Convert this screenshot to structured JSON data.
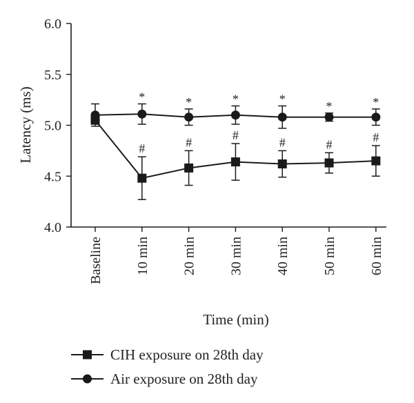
{
  "chart_data": {
    "type": "line",
    "title": "",
    "xlabel": "Time (min)",
    "ylabel": "Latency (ms)",
    "categories": [
      "Baseline",
      "10 min",
      "20 min",
      "30 min",
      "40 min",
      "50 min",
      "60 min"
    ],
    "ylim": [
      4.0,
      6.0
    ],
    "yticks": [
      "4.0",
      "4.5",
      "5.0",
      "5.5",
      "6.0"
    ],
    "grid": false,
    "legend_position": "bottom-left",
    "series": [
      {
        "name": "CIH exposure on 28th day",
        "marker": "square",
        "color": "#1a1a1a",
        "values": [
          5.05,
          4.48,
          4.58,
          4.64,
          4.62,
          4.63,
          4.65
        ],
        "errors": [
          0.04,
          0.21,
          0.17,
          0.18,
          0.13,
          0.1,
          0.15
        ],
        "annotations": [
          "",
          "#",
          "#",
          "#",
          "#",
          "#",
          "#"
        ]
      },
      {
        "name": "Air exposure on 28th day",
        "marker": "circle",
        "color": "#1a1a1a",
        "values": [
          5.1,
          5.11,
          5.08,
          5.1,
          5.08,
          5.08,
          5.08
        ],
        "errors": [
          0.11,
          0.1,
          0.08,
          0.09,
          0.11,
          0.04,
          0.08
        ],
        "annotations": [
          "",
          "*",
          "*",
          "*",
          "*",
          "*",
          "*"
        ]
      }
    ]
  }
}
